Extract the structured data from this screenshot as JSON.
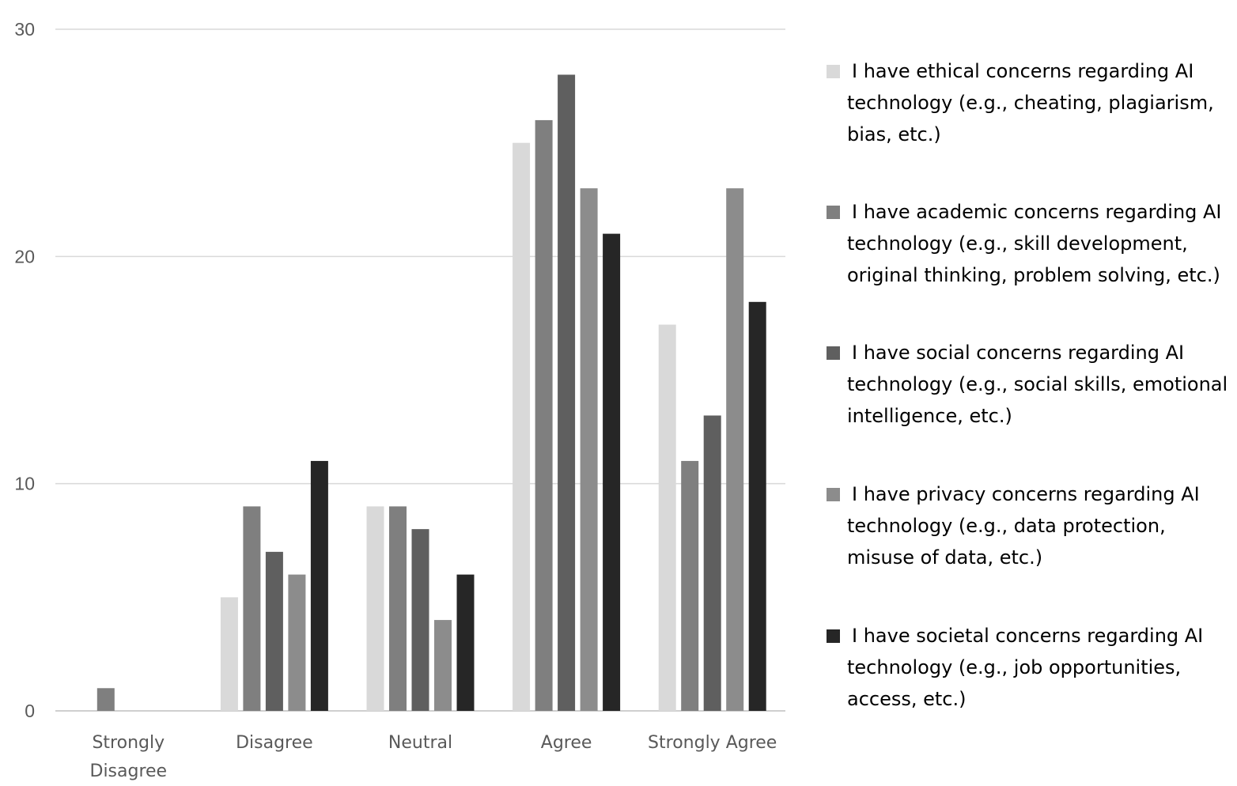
{
  "chart_data": {
    "type": "bar",
    "title": "",
    "xlabel": "",
    "ylabel": "",
    "ylim": [
      0,
      30
    ],
    "yticks": [
      0,
      10,
      20,
      30
    ],
    "grid": true,
    "legend_placement": "right",
    "categories": [
      "Strongly Disagree",
      "Disagree",
      "Neutral",
      "Agree",
      "Strongly Agree"
    ],
    "series": [
      {
        "name": "I have ethical concerns regarding AI technology (e.g., cheating, plagiarism, bias, etc.)",
        "color": "#d9d9d9",
        "values": [
          0,
          5,
          9,
          25,
          17
        ]
      },
      {
        "name": "I have academic concerns regarding AI technology (e.g., skill development, original thinking, problem solving, etc.)",
        "color": "#7f7f7f",
        "values": [
          1,
          9,
          9,
          26,
          11
        ]
      },
      {
        "name": "I have social concerns regarding AI technology (e.g., social skills, emotional intelligence, etc.)",
        "color": "#5f5f5f",
        "values": [
          0,
          7,
          8,
          28,
          13
        ]
      },
      {
        "name": "I have privacy concerns regarding AI technology (e.g., data protection, misuse of data, etc.)",
        "color": "#8c8c8c",
        "values": [
          0,
          6,
          4,
          23,
          23
        ]
      },
      {
        "name": "I have societal concerns regarding AI technology (e.g., job opportunities, access, etc.)",
        "color": "#262626",
        "values": [
          0,
          11,
          6,
          21,
          18
        ]
      }
    ]
  }
}
